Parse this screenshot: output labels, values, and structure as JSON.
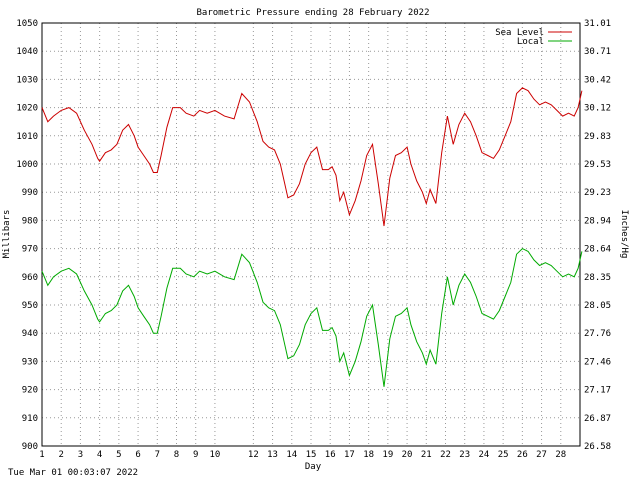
{
  "footer": {
    "timestamp": "Tue Mar 01 00:03:07 2022"
  },
  "chart_data": {
    "type": "line",
    "title": "Barometric Pressure ending 28 February 2022",
    "xlabel": "Day",
    "ylabel": "Millibars",
    "y2label": "Inches/Hg",
    "xlim": [
      1,
      29
    ],
    "ylim": [
      900,
      1050
    ],
    "y2lim": [
      26.58,
      31.01
    ],
    "grid": true,
    "legend_position": "top-right",
    "x_ticks": [
      "1",
      "2",
      "3",
      "4",
      "5",
      "6",
      "7",
      "8",
      "9",
      "10",
      "12",
      "13",
      "14",
      "15",
      "16",
      "17",
      "18",
      "19",
      "20",
      "21",
      "22",
      "23",
      "24",
      "25",
      "26",
      "27",
      "28"
    ],
    "y_ticks": [
      900,
      910,
      920,
      930,
      940,
      950,
      960,
      970,
      980,
      990,
      1000,
      1010,
      1020,
      1030,
      1040,
      1050
    ],
    "y2_ticks": [
      "26.58",
      "26.87",
      "27.17",
      "27.46",
      "27.76",
      "28.05",
      "28.35",
      "28.64",
      "28.94",
      "29.23",
      "29.53",
      "29.83",
      "30.12",
      "30.42",
      "30.71",
      "31.01"
    ],
    "series": [
      {
        "name": "Sea Level",
        "color": "#cc0000",
        "x": [
          1.0,
          1.3,
          1.6,
          2.0,
          2.4,
          2.8,
          3.2,
          3.6,
          3.9,
          4.0,
          4.3,
          4.6,
          4.9,
          5.2,
          5.5,
          5.8,
          6.0,
          6.3,
          6.6,
          6.8,
          7.0,
          7.2,
          7.5,
          7.8,
          8.2,
          8.5,
          8.9,
          9.2,
          9.6,
          10.0,
          10.5,
          11.0,
          11.4,
          11.8,
          12.2,
          12.5,
          12.8,
          13.1,
          13.4,
          13.6,
          13.8,
          14.1,
          14.4,
          14.7,
          15.0,
          15.3,
          15.6,
          15.9,
          16.1,
          16.3,
          16.5,
          16.7,
          17.0,
          17.3,
          17.6,
          17.9,
          18.2,
          18.5,
          18.8,
          19.1,
          19.4,
          19.7,
          20.0,
          20.2,
          20.5,
          20.8,
          21.0,
          21.2,
          21.5,
          21.8,
          22.1,
          22.4,
          22.7,
          23.0,
          23.3,
          23.6,
          23.9,
          24.2,
          24.5,
          24.8,
          25.1,
          25.4,
          25.7,
          26.0,
          26.3,
          26.6,
          26.9,
          27.2,
          27.5,
          27.8,
          28.1,
          28.4,
          28.7,
          28.9,
          29.1
        ],
        "values": [
          1020,
          1015,
          1017,
          1019,
          1020,
          1018,
          1012,
          1007,
          1002,
          1001,
          1004,
          1005,
          1007,
          1012,
          1014,
          1010,
          1006,
          1003,
          1000,
          997,
          997,
          1003,
          1013,
          1020,
          1020,
          1018,
          1017,
          1019,
          1018,
          1019,
          1017,
          1016,
          1025,
          1022,
          1015,
          1008,
          1006,
          1005,
          1000,
          994,
          988,
          989,
          993,
          1000,
          1004,
          1006,
          998,
          998,
          999,
          996,
          987,
          990,
          982,
          987,
          994,
          1003,
          1007,
          993,
          978,
          995,
          1003,
          1004,
          1006,
          1000,
          994,
          990,
          986,
          991,
          986,
          1004,
          1017,
          1007,
          1014,
          1018,
          1015,
          1010,
          1004,
          1003,
          1002,
          1005,
          1010,
          1015,
          1025,
          1027,
          1026,
          1023,
          1021,
          1022,
          1021,
          1019,
          1017,
          1018,
          1017,
          1020,
          1026
        ]
      },
      {
        "name": "Local",
        "color": "#00aa00",
        "x": [
          1.0,
          1.3,
          1.6,
          2.0,
          2.4,
          2.8,
          3.2,
          3.6,
          3.9,
          4.0,
          4.3,
          4.6,
          4.9,
          5.2,
          5.5,
          5.8,
          6.0,
          6.3,
          6.6,
          6.8,
          7.0,
          7.2,
          7.5,
          7.8,
          8.2,
          8.5,
          8.9,
          9.2,
          9.6,
          10.0,
          10.5,
          11.0,
          11.4,
          11.8,
          12.2,
          12.5,
          12.8,
          13.1,
          13.4,
          13.6,
          13.8,
          14.1,
          14.4,
          14.7,
          15.0,
          15.3,
          15.6,
          15.9,
          16.1,
          16.3,
          16.5,
          16.7,
          17.0,
          17.3,
          17.6,
          17.9,
          18.2,
          18.5,
          18.8,
          19.1,
          19.4,
          19.7,
          20.0,
          20.2,
          20.5,
          20.8,
          21.0,
          21.2,
          21.5,
          21.8,
          22.1,
          22.4,
          22.7,
          23.0,
          23.3,
          23.6,
          23.9,
          24.2,
          24.5,
          24.8,
          25.1,
          25.4,
          25.7,
          26.0,
          26.3,
          26.6,
          26.9,
          27.2,
          27.5,
          27.8,
          28.1,
          28.4,
          28.7,
          28.9,
          29.1
        ],
        "values": [
          962,
          957,
          960,
          962,
          963,
          961,
          955,
          950,
          945,
          944,
          947,
          948,
          950,
          955,
          957,
          953,
          949,
          946,
          943,
          940,
          940,
          946,
          956,
          963,
          963,
          961,
          960,
          962,
          961,
          962,
          960,
          959,
          968,
          965,
          958,
          951,
          949,
          948,
          943,
          937,
          931,
          932,
          936,
          943,
          947,
          949,
          941,
          941,
          942,
          939,
          930,
          933,
          925,
          930,
          937,
          946,
          950,
          936,
          921,
          938,
          946,
          947,
          949,
          943,
          937,
          933,
          929,
          934,
          929,
          947,
          960,
          950,
          957,
          961,
          958,
          953,
          947,
          946,
          945,
          948,
          953,
          958,
          968,
          970,
          969,
          966,
          964,
          965,
          964,
          962,
          960,
          961,
          960,
          963,
          969
        ]
      }
    ]
  }
}
